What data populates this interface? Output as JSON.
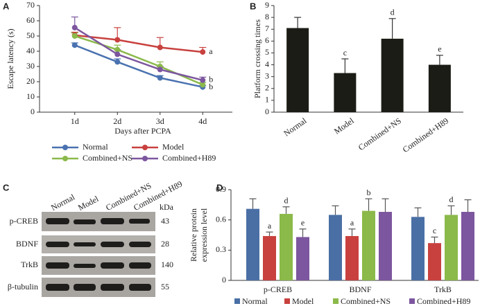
{
  "panel_labels": [
    "A",
    "B",
    "C",
    "D"
  ],
  "chart_data": [
    {
      "type": "line",
      "xlabel": "Days after PCPA",
      "ylabel": "Escape latency (s)",
      "categories": [
        "1d",
        "2d",
        "3d",
        "4d"
      ],
      "ylim": [
        0,
        70
      ],
      "yticks": [
        0,
        10,
        20,
        30,
        40,
        50,
        60,
        70
      ],
      "series": [
        {
          "name": "Normal",
          "color": "#4a72b0",
          "values": [
            44,
            33,
            22.5,
            16.5
          ],
          "errors": [
            1.5,
            2,
            1.5,
            1
          ],
          "end_label": null
        },
        {
          "name": "Model",
          "color": "#c8413e",
          "values": [
            50.5,
            47.5,
            42.5,
            39.5
          ],
          "errors": [
            2,
            8,
            6.5,
            3
          ],
          "end_label": "a"
        },
        {
          "name": "Combined+NS",
          "color": "#8bb94a",
          "values": [
            50,
            41,
            30,
            18
          ],
          "errors": [
            2,
            3,
            3,
            1.5
          ],
          "end_label": "b"
        },
        {
          "name": "Combined+H89",
          "color": "#7c569e",
          "values": [
            55.5,
            38,
            28,
            21
          ],
          "errors": [
            7,
            3,
            2,
            2
          ],
          "end_label": "b"
        }
      ]
    },
    {
      "type": "bar",
      "ylabel": "Platform crossing times",
      "categories": [
        "Normal",
        "Model",
        "Combined+NS",
        "Combined+H89"
      ],
      "values": [
        7.1,
        3.3,
        6.2,
        4.0
      ],
      "errors": [
        0.9,
        1.2,
        1.7,
        0.8
      ],
      "value_marks": [
        null,
        "c",
        "d",
        "e"
      ],
      "color": "#1c1c16",
      "ylim": [
        0,
        9
      ],
      "yticks": [
        0,
        1,
        2,
        3,
        4,
        5,
        6,
        7,
        8,
        9
      ]
    },
    {
      "type": "grouped_bar",
      "ylabel": [
        "Relative protein",
        "expression level"
      ],
      "categories": [
        "p-CREB",
        "BDNF",
        "TrkB"
      ],
      "ylim": [
        0,
        0.9
      ],
      "yticks": [
        0,
        0.3,
        0.6,
        0.9
      ],
      "series": [
        {
          "name": "Normal",
          "color": "#4a6fa5",
          "values": [
            0.71,
            0.65,
            0.63
          ],
          "errors": [
            0.1,
            0.09,
            0.09
          ],
          "value_marks": [
            null,
            null,
            null
          ]
        },
        {
          "name": "Model",
          "color": "#c8413e",
          "values": [
            0.44,
            0.44,
            0.37
          ],
          "errors": [
            0.04,
            0.07,
            0.06
          ],
          "value_marks": [
            "a",
            "a",
            "c"
          ]
        },
        {
          "name": "Combined+NS",
          "color": "#8bb94a",
          "values": [
            0.66,
            0.69,
            0.65
          ],
          "errors": [
            0.07,
            0.12,
            0.09
          ],
          "value_marks": [
            "d",
            "b",
            "d"
          ]
        },
        {
          "name": "Combined+H89",
          "color": "#7c569e",
          "values": [
            0.43,
            0.68,
            0.68
          ],
          "errors": [
            0.08,
            0.13,
            0.12
          ],
          "value_marks": [
            "e",
            null,
            null
          ]
        }
      ]
    }
  ],
  "blot": {
    "columns": [
      "Normal",
      "Model",
      "Combined+NS",
      "Combined+H89"
    ],
    "unit": "kDa",
    "rows": [
      {
        "label": "p-CREB",
        "kda": 43
      },
      {
        "label": "BDNF",
        "kda": 28
      },
      {
        "label": "TrkB",
        "kda": 140
      },
      {
        "label": "β-tubulin",
        "kda": 55
      }
    ]
  }
}
